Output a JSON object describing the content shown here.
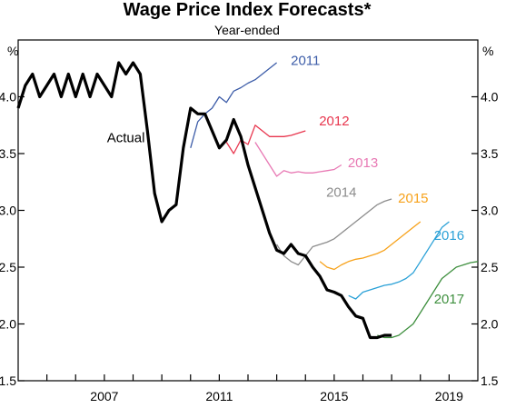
{
  "chart_data": {
    "type": "line",
    "title": "Wage Price Index Forecasts*",
    "subtitle": "Year-ended",
    "y_unit": "%",
    "ylim": [
      1.5,
      4.5
    ],
    "y_ticks": [
      "1.5",
      "2.0",
      "2.5",
      "3.0",
      "3.5",
      "4.0"
    ],
    "xlim": [
      2004.0,
      2020.0
    ],
    "x_tick_labels": [
      "2007",
      "2011",
      "2015",
      "2019"
    ],
    "x_tick_label_years": [
      2007,
      2011,
      2015,
      2019
    ],
    "grid": false,
    "series": [
      {
        "name": "Actual",
        "color": "#000000",
        "label_text": "Actual",
        "x": [
          2004.0,
          2004.25,
          2004.5,
          2004.75,
          2005.0,
          2005.25,
          2005.5,
          2005.75,
          2006.0,
          2006.25,
          2006.5,
          2006.75,
          2007.0,
          2007.25,
          2007.5,
          2007.75,
          2008.0,
          2008.25,
          2008.5,
          2008.75,
          2009.0,
          2009.25,
          2009.5,
          2009.75,
          2010.0,
          2010.25,
          2010.5,
          2010.75,
          2011.0,
          2011.25,
          2011.5,
          2011.75,
          2012.0,
          2012.25,
          2012.5,
          2012.75,
          2013.0,
          2013.25,
          2013.5,
          2013.75,
          2014.0,
          2014.25,
          2014.5,
          2014.75,
          2015.0,
          2015.25,
          2015.5,
          2015.75,
          2016.0,
          2016.25,
          2016.5,
          2016.75,
          2017.0
        ],
        "y": [
          3.9,
          4.1,
          4.2,
          4.0,
          4.1,
          4.2,
          4.0,
          4.2,
          4.0,
          4.2,
          4.0,
          4.2,
          4.1,
          4.0,
          4.3,
          4.2,
          4.3,
          4.2,
          3.7,
          3.15,
          2.9,
          3.0,
          3.05,
          3.55,
          3.9,
          3.85,
          3.85,
          3.7,
          3.55,
          3.62,
          3.8,
          3.65,
          3.4,
          3.2,
          3.0,
          2.8,
          2.65,
          2.62,
          2.7,
          2.62,
          2.6,
          2.5,
          2.42,
          2.3,
          2.28,
          2.25,
          2.15,
          2.07,
          2.05,
          1.88,
          1.88,
          1.9,
          1.9
        ]
      },
      {
        "name": "2011",
        "color": "#3C5CA8",
        "label_text": "2011",
        "x": [
          2010.0,
          2010.25,
          2010.5,
          2010.75,
          2011.0,
          2011.25,
          2011.5,
          2011.75,
          2012.0,
          2012.25,
          2012.5,
          2012.75,
          2013.0
        ],
        "y": [
          3.55,
          3.78,
          3.85,
          3.9,
          4.0,
          3.95,
          4.05,
          4.08,
          4.12,
          4.15,
          4.2,
          4.25,
          4.3
        ]
      },
      {
        "name": "2012",
        "color": "#E8364E",
        "label_text": "2012",
        "x": [
          2011.25,
          2011.5,
          2011.75,
          2012.0,
          2012.25,
          2012.5,
          2012.75,
          2013.0,
          2013.25,
          2013.5,
          2013.75,
          2014.0
        ],
        "y": [
          3.6,
          3.5,
          3.62,
          3.58,
          3.75,
          3.7,
          3.65,
          3.65,
          3.65,
          3.66,
          3.68,
          3.7
        ]
      },
      {
        "name": "2013",
        "color": "#E879B4",
        "label_text": "2013",
        "x": [
          2012.25,
          2012.5,
          2012.75,
          2013.0,
          2013.25,
          2013.5,
          2013.75,
          2014.0,
          2014.25,
          2014.5,
          2014.75,
          2015.0,
          2015.25
        ],
        "y": [
          3.6,
          3.5,
          3.4,
          3.3,
          3.35,
          3.33,
          3.34,
          3.33,
          3.33,
          3.34,
          3.35,
          3.36,
          3.4
        ]
      },
      {
        "name": "2014",
        "color": "#8C8C8C",
        "label_text": "2014",
        "x": [
          2013.0,
          2013.25,
          2013.5,
          2013.75,
          2014.0,
          2014.25,
          2014.5,
          2014.75,
          2015.0,
          2015.25,
          2015.5,
          2015.75,
          2016.0,
          2016.25,
          2016.5,
          2016.75,
          2017.0
        ],
        "y": [
          2.7,
          2.6,
          2.55,
          2.52,
          2.6,
          2.68,
          2.7,
          2.72,
          2.75,
          2.8,
          2.85,
          2.9,
          2.95,
          3.0,
          3.05,
          3.08,
          3.1
        ]
      },
      {
        "name": "2015",
        "color": "#F7A21B",
        "label_text": "2015",
        "x": [
          2014.5,
          2014.75,
          2015.0,
          2015.25,
          2015.5,
          2015.75,
          2016.0,
          2016.25,
          2016.5,
          2016.75,
          2017.0,
          2017.25,
          2017.5,
          2017.75,
          2018.0
        ],
        "y": [
          2.55,
          2.5,
          2.48,
          2.52,
          2.55,
          2.57,
          2.58,
          2.6,
          2.62,
          2.65,
          2.7,
          2.75,
          2.8,
          2.85,
          2.9
        ]
      },
      {
        "name": "2016",
        "color": "#2BA1D7",
        "label_text": "2016",
        "x": [
          2015.5,
          2015.75,
          2016.0,
          2016.25,
          2016.5,
          2016.75,
          2017.0,
          2017.25,
          2017.5,
          2017.75,
          2018.0,
          2018.25,
          2018.5,
          2018.75,
          2019.0
        ],
        "y": [
          2.25,
          2.22,
          2.28,
          2.3,
          2.32,
          2.34,
          2.35,
          2.37,
          2.4,
          2.45,
          2.55,
          2.65,
          2.75,
          2.85,
          2.9
        ]
      },
      {
        "name": "2017",
        "color": "#3E8F3E",
        "label_text": "2017",
        "x": [
          2016.5,
          2016.75,
          2017.0,
          2017.25,
          2017.5,
          2017.75,
          2018.0,
          2018.25,
          2018.5,
          2018.75,
          2019.0,
          2019.25,
          2019.5,
          2019.75,
          2020.0
        ],
        "y": [
          1.9,
          1.88,
          1.88,
          1.9,
          1.95,
          2.0,
          2.1,
          2.2,
          2.3,
          2.4,
          2.45,
          2.5,
          2.52,
          2.54,
          2.55
        ]
      }
    ]
  }
}
